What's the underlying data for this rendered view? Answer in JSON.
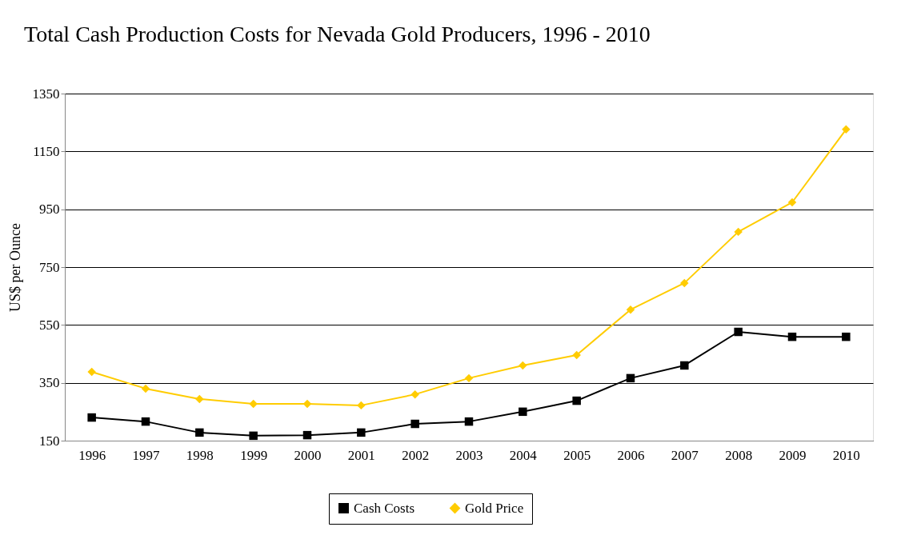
{
  "chart_data": {
    "type": "line",
    "title": "Total Cash Production Costs for Nevada Gold Producers, 1996 - 2010",
    "ylabel": "US$ per Ounce",
    "categories": [
      "1996",
      "1997",
      "1998",
      "1999",
      "2000",
      "2001",
      "2002",
      "2003",
      "2004",
      "2005",
      "2006",
      "2007",
      "2008",
      "2009",
      "2010"
    ],
    "series": [
      {
        "name": "Cash Costs",
        "color": "#000000",
        "marker": "square",
        "values": [
          230,
          216,
          178,
          167,
          169,
          178,
          208,
          216,
          250,
          288,
          366,
          410,
          526,
          509,
          509
        ]
      },
      {
        "name": "Gold Price",
        "color": "#ffcc00",
        "marker": "diamond",
        "values": [
          388,
          330,
          294,
          277,
          277,
          272,
          310,
          366,
          410,
          446,
          603,
          695,
          872,
          974,
          1226
        ]
      }
    ],
    "ylim": [
      150,
      1350
    ],
    "yticks": [
      150,
      350,
      550,
      750,
      950,
      1150,
      1350
    ],
    "grid": "y",
    "legend": "bottom",
    "line_style": "solid"
  }
}
